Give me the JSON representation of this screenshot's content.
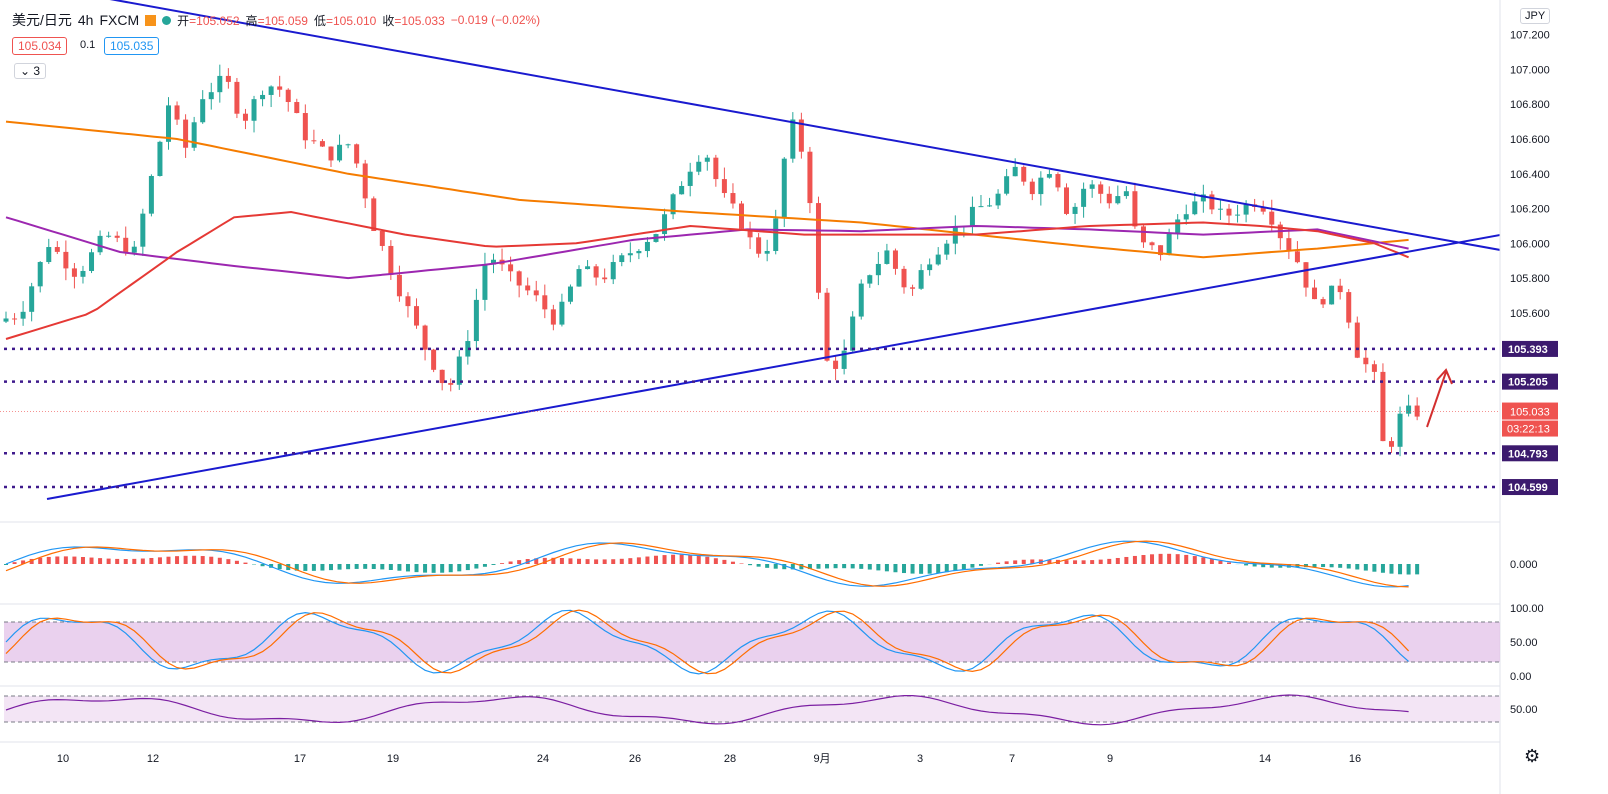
{
  "legend": {
    "symbol": "美元/日元",
    "timeframe": "4h",
    "source": "FXCM",
    "o_label": "开",
    "o": "=105.052",
    "h_label": "高",
    "h": "=105.059",
    "l_label": "低",
    "l": "=105.010",
    "c_label": "收",
    "c": "=105.033",
    "change": "−0.019 (−0.02%)",
    "sell_price": "105.034",
    "spread": "0.1",
    "buy_price": "105.035",
    "indicator_count": "3",
    "currency": "JPY"
  },
  "colors": {
    "up": "#26a69a",
    "down": "#ef5350",
    "trendline": "#1a1acf",
    "ma_fast": "#e53935",
    "ma_mid": "#9c27b0",
    "ma_slow": "#f57c00",
    "level_line": "#3f1a8c",
    "macd_line": "#2196f3",
    "macd_signal": "#ff6d00",
    "stoch_band": "#e1bee7",
    "rsi_line": "#7b1fa2"
  },
  "chart_data": {
    "type": "candlestick",
    "price_axis": {
      "min": 104.5,
      "max": 107.4,
      "ticks": [
        "107.200",
        "107.000",
        "106.800",
        "106.600",
        "106.400",
        "106.200",
        "106.000",
        "105.800",
        "105.600"
      ]
    },
    "levels": [
      "105.393",
      "105.205",
      "104.793",
      "104.599"
    ],
    "level_values": [
      105.393,
      105.205,
      104.793,
      104.599
    ],
    "last_price": "105.033",
    "last_price_value": 105.033,
    "countdown": "03:22:13",
    "time_labels": [
      "10",
      "12",
      "17",
      "19",
      "24",
      "26",
      "28",
      "9月",
      "3",
      "7",
      "9",
      "14",
      "16"
    ],
    "trendlines": [
      {
        "name": "upper",
        "from": [
          0,
          107.42
        ],
        "to": [
          1418,
          105.97
        ]
      },
      {
        "name": "lower",
        "from": [
          0,
          104.53
        ],
        "to": [
          1418,
          106.03
        ]
      }
    ],
    "anchors": [
      [
        0,
        105.55
      ],
      [
        8,
        105.6
      ],
      [
        18,
        106.0
      ],
      [
        28,
        105.82
      ],
      [
        38,
        106.05
      ],
      [
        48,
        105.95
      ],
      [
        60,
        106.8
      ],
      [
        66,
        106.55
      ],
      [
        72,
        106.85
      ],
      [
        80,
        106.95
      ],
      [
        86,
        106.7
      ],
      [
        94,
        106.92
      ],
      [
        100,
        106.88
      ],
      [
        108,
        106.62
      ],
      [
        116,
        106.5
      ],
      [
        124,
        106.58
      ],
      [
        132,
        106.1
      ],
      [
        138,
        105.85
      ],
      [
        144,
        105.62
      ],
      [
        150,
        105.4
      ],
      [
        158,
        105.15
      ],
      [
        164,
        105.4
      ],
      [
        172,
        105.95
      ],
      [
        180,
        105.8
      ],
      [
        188,
        105.7
      ],
      [
        196,
        105.55
      ],
      [
        204,
        105.85
      ],
      [
        212,
        105.8
      ],
      [
        222,
        105.95
      ],
      [
        232,
        106.08
      ],
      [
        242,
        106.42
      ],
      [
        248,
        106.55
      ],
      [
        254,
        106.28
      ],
      [
        260,
        106.15
      ],
      [
        266,
        105.95
      ],
      [
        272,
        106.0
      ],
      [
        278,
        106.72
      ],
      [
        284,
        106.45
      ],
      [
        290,
        105.32
      ],
      [
        296,
        105.3
      ],
      [
        304,
        105.8
      ],
      [
        312,
        105.95
      ],
      [
        320,
        105.7
      ],
      [
        326,
        105.9
      ],
      [
        334,
        106.05
      ],
      [
        344,
        106.2
      ],
      [
        350,
        106.25
      ],
      [
        358,
        106.45
      ],
      [
        362,
        106.3
      ],
      [
        370,
        106.45
      ],
      [
        376,
        106.15
      ],
      [
        382,
        106.35
      ],
      [
        390,
        106.25
      ],
      [
        396,
        106.3
      ],
      [
        400,
        106.0
      ],
      [
        408,
        105.95
      ],
      [
        416,
        106.2
      ],
      [
        424,
        106.25
      ],
      [
        430,
        106.15
      ],
      [
        436,
        106.2
      ],
      [
        442,
        106.25
      ],
      [
        446,
        106.18
      ],
      [
        450,
        106.05
      ],
      [
        456,
        105.9
      ],
      [
        462,
        105.65
      ],
      [
        466,
        105.7
      ],
      [
        472,
        105.75
      ],
      [
        476,
        105.4
      ],
      [
        480,
        105.3
      ],
      [
        484,
        105.2
      ],
      [
        486,
        104.85
      ],
      [
        489,
        104.86
      ],
      [
        492,
        105.0
      ],
      [
        495,
        105.03
      ]
    ],
    "ma_fast": [
      [
        0,
        105.45
      ],
      [
        30,
        105.6
      ],
      [
        60,
        105.95
      ],
      [
        80,
        106.15
      ],
      [
        100,
        106.18
      ],
      [
        140,
        106.05
      ],
      [
        170,
        105.98
      ],
      [
        200,
        106.0
      ],
      [
        240,
        106.1
      ],
      [
        280,
        106.05
      ],
      [
        310,
        106.05
      ],
      [
        340,
        106.05
      ],
      [
        380,
        106.1
      ],
      [
        420,
        106.12
      ],
      [
        440,
        106.1
      ],
      [
        460,
        106.07
      ],
      [
        480,
        106.0
      ],
      [
        492,
        105.92
      ]
    ],
    "ma_mid": [
      [
        0,
        106.15
      ],
      [
        40,
        105.95
      ],
      [
        80,
        105.87
      ],
      [
        120,
        105.8
      ],
      [
        170,
        105.88
      ],
      [
        220,
        106.02
      ],
      [
        260,
        106.08
      ],
      [
        300,
        106.07
      ],
      [
        340,
        106.1
      ],
      [
        380,
        106.08
      ],
      [
        420,
        106.05
      ],
      [
        460,
        106.08
      ],
      [
        492,
        105.97
      ]
    ],
    "ma_slow": [
      [
        0,
        106.7
      ],
      [
        60,
        106.6
      ],
      [
        120,
        106.4
      ],
      [
        180,
        106.25
      ],
      [
        240,
        106.18
      ],
      [
        300,
        106.12
      ],
      [
        340,
        106.05
      ],
      [
        380,
        105.98
      ],
      [
        420,
        105.92
      ],
      [
        460,
        105.97
      ],
      [
        492,
        106.02
      ]
    ],
    "macd_axis": {
      "tick": "0.000"
    },
    "stoch_axis": {
      "ticks": [
        "100.00",
        "50.00",
        "0.00"
      ]
    },
    "rsi_axis": {
      "tick": "50.00"
    }
  }
}
